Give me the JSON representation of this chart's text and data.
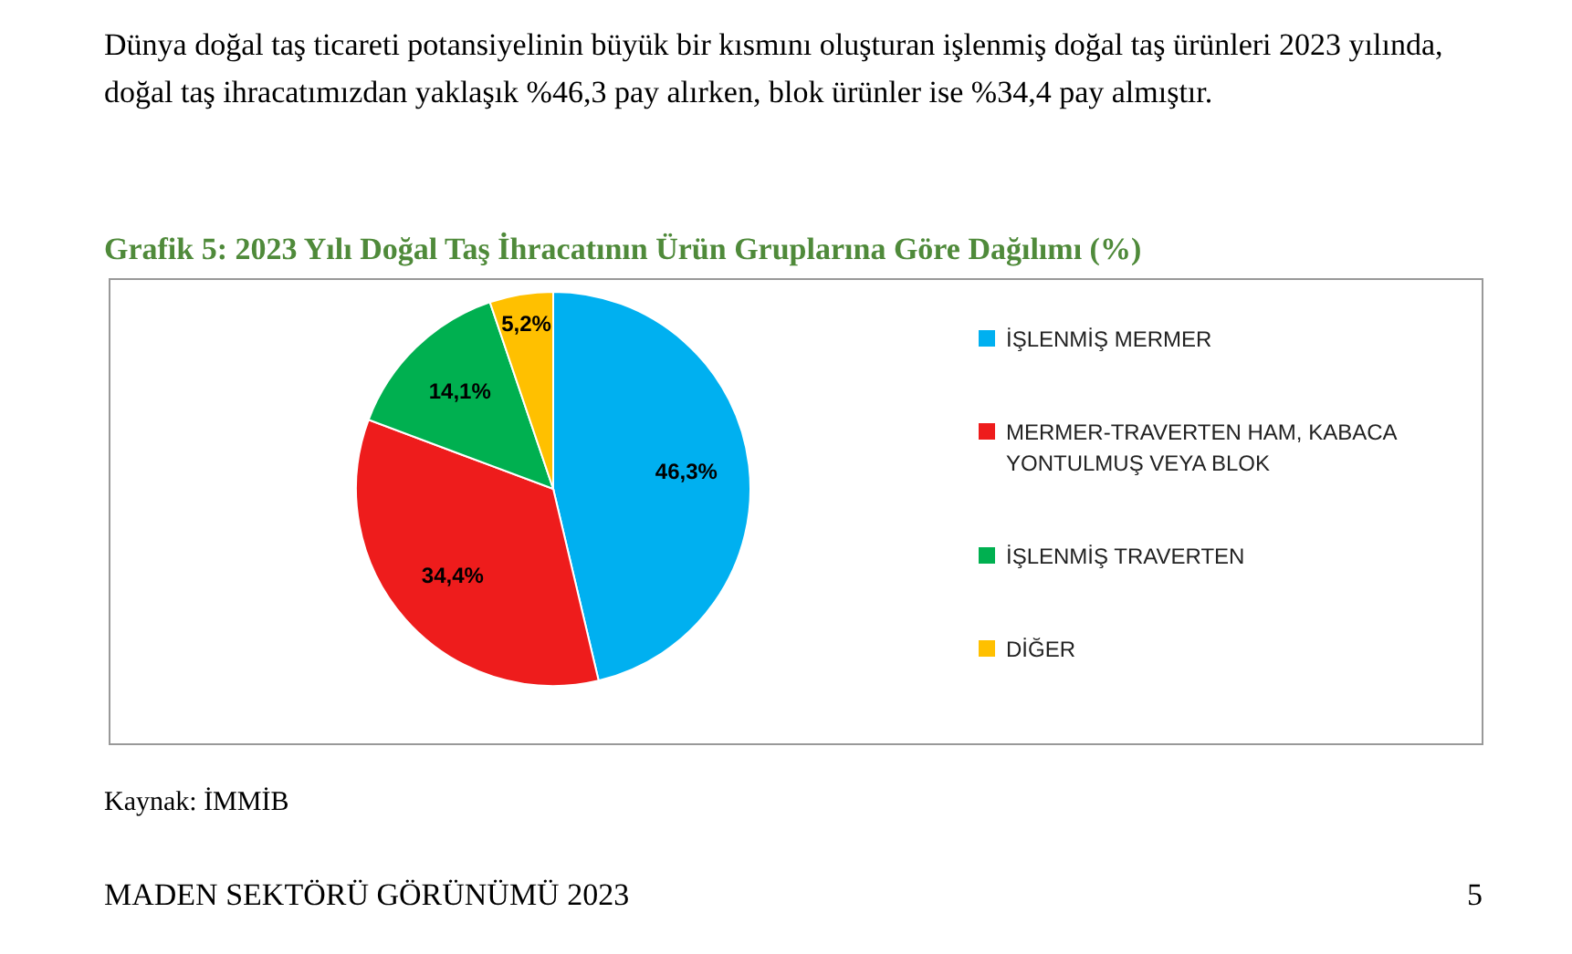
{
  "chart_data": {
    "type": "pie",
    "title": "Grafik 5: 2023 Yılı Doğal Taş İhracatının Ürün Gruplarına Göre Dağılımı (%)",
    "categories": [
      "İŞLENMİŞ MERMER",
      "MERMER-TRAVERTEN HAM, KABACA YONTULMUŞ VEYA BLOK",
      "İŞLENMİŞ TRAVERTEN",
      "DİĞER"
    ],
    "values": [
      46.3,
      34.4,
      14.1,
      5.2
    ],
    "colors": [
      "#00b0f0",
      "#ee1c1c",
      "#00b050",
      "#ffc000"
    ],
    "value_labels": [
      "46,3%",
      "34,4%",
      "14,1%",
      "5,2%"
    ],
    "legend": "right",
    "annotations": [
      "Dünya doğal taş ticareti potansiyelinin büyük bir kısmını oluşturan işlenmiş doğal taş ürünleri 2023 yılında, doğal taş ihracatımızdan yaklaşık %46,3 pay alırken, blok ürünler ise %34,4 pay almıştır.",
      "Kaynak: İMMİB",
      "MADEN SEKTÖRÜ GÖRÜNÜMÜ 2023",
      "5"
    ]
  }
}
